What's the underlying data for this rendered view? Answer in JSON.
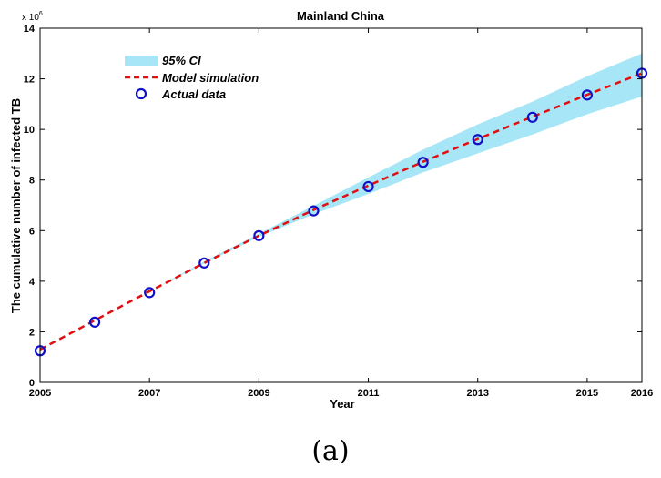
{
  "chart_data": {
    "type": "line",
    "title": "Mainland China",
    "xlabel": "Year",
    "ylabel": "The cumulative number of infected TB",
    "y_exponent_label": "x 10",
    "y_exponent_power": "6",
    "y_multiplier": 1000000,
    "xlim": [
      2005,
      2016
    ],
    "ylim": [
      0,
      14
    ],
    "x_ticks": [
      "2005",
      "2007",
      "2009",
      "2011",
      "2013",
      "2015",
      "2016"
    ],
    "y_ticks": [
      "0",
      "2",
      "4",
      "6",
      "8",
      "10",
      "12",
      "14"
    ],
    "grid": false,
    "legend_position": "top-left",
    "legend": [
      "95% CI",
      "Model simulation",
      "Actual data"
    ],
    "series": [
      {
        "name": "Actual data",
        "style": "markers",
        "color": "#1010c8",
        "x": [
          2005,
          2006,
          2007,
          2008,
          2009,
          2010,
          2011,
          2012,
          2013,
          2014,
          2015,
          2016
        ],
        "y": [
          1.25,
          2.38,
          3.55,
          4.72,
          5.8,
          6.78,
          7.74,
          8.7,
          9.6,
          10.48,
          11.36,
          12.22
        ]
      },
      {
        "name": "Model simulation",
        "style": "dashed",
        "color": "#e01010",
        "x": [
          2005,
          2006,
          2007,
          2008,
          2009,
          2010,
          2011,
          2012,
          2013,
          2014,
          2015,
          2016
        ],
        "y": [
          1.3,
          2.45,
          3.6,
          4.72,
          5.8,
          6.82,
          7.78,
          8.72,
          9.62,
          10.5,
          11.37,
          12.22
        ]
      }
    ],
    "ci_band": {
      "name": "95% CI",
      "color": "#a7e6f7",
      "x": [
        2005,
        2007,
        2008,
        2009,
        2010,
        2011,
        2012,
        2013,
        2014,
        2015,
        2016
      ],
      "lower": [
        1.3,
        3.6,
        4.7,
        5.75,
        6.65,
        7.45,
        8.3,
        9.05,
        9.8,
        10.6,
        11.3
      ],
      "upper": [
        1.3,
        3.6,
        4.78,
        5.88,
        6.98,
        8.1,
        9.2,
        10.2,
        11.1,
        12.1,
        13.0
      ]
    }
  },
  "caption": "(a)"
}
